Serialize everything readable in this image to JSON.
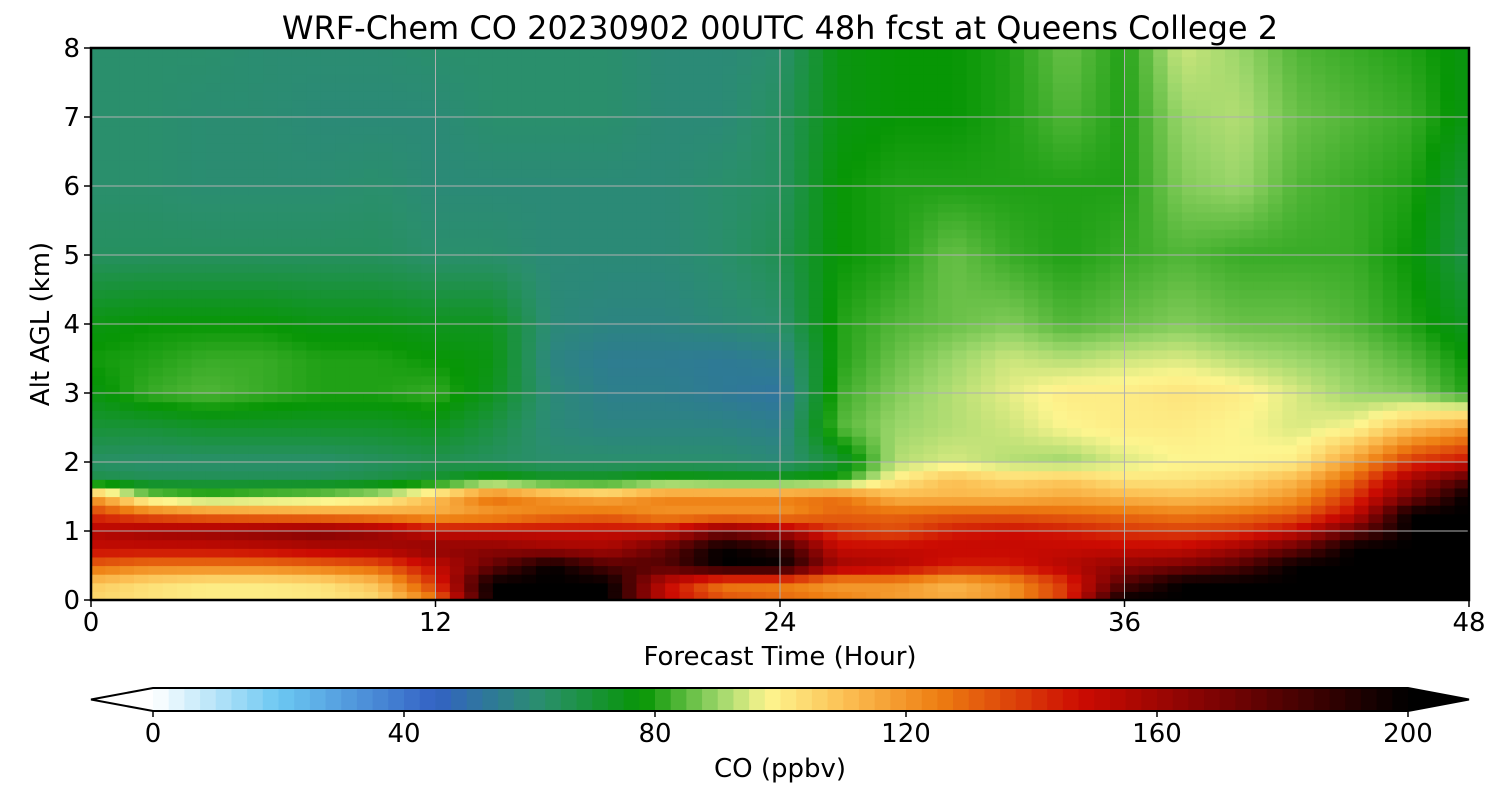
{
  "chart_data": {
    "type": "heatmap",
    "title": "WRF-Chem CO  20230902 00UTC 48h fcst at Queens College 2",
    "xlabel": "Forecast Time (Hour)",
    "ylabel": "Alt AGL (km)",
    "xlim": [
      0,
      48
    ],
    "ylim": [
      0,
      8
    ],
    "xticks": [
      0,
      12,
      24,
      36,
      48
    ],
    "yticks": [
      0,
      1,
      2,
      3,
      4,
      5,
      6,
      7,
      8
    ],
    "grid": true,
    "colorbar": {
      "label": "CO  (ppbv)",
      "orientation": "horizontal",
      "range": [
        0,
        200
      ],
      "ticks": [
        0,
        40,
        80,
        120,
        160,
        200
      ],
      "extend": "both",
      "stops": [
        {
          "v": 0,
          "c": "#ffffff"
        },
        {
          "v": 20,
          "c": "#6cc8f2"
        },
        {
          "v": 45,
          "c": "#3362c4"
        },
        {
          "v": 62,
          "c": "#2a8f6c"
        },
        {
          "v": 78,
          "c": "#079605"
        },
        {
          "v": 90,
          "c": "#9bd66a"
        },
        {
          "v": 98,
          "c": "#fdf58f"
        },
        {
          "v": 110,
          "c": "#fcc054"
        },
        {
          "v": 125,
          "c": "#ee7f12"
        },
        {
          "v": 148,
          "c": "#cc0b02"
        },
        {
          "v": 170,
          "c": "#7a0303"
        },
        {
          "v": 200,
          "c": "#000000"
        }
      ]
    },
    "x": [
      0,
      2,
      4,
      6,
      8,
      10,
      12,
      14,
      16,
      18,
      20,
      22,
      24,
      26,
      28,
      30,
      32,
      34,
      36,
      38,
      40,
      42,
      44,
      46,
      48
    ],
    "y": [
      0,
      0.25,
      0.5,
      0.75,
      1,
      1.25,
      1.5,
      1.75,
      2,
      2.5,
      3,
      3.5,
      4,
      5,
      6,
      7,
      8
    ],
    "values": [
      [
        105,
        102,
        100,
        100,
        101,
        104,
        125,
        200,
        200,
        200,
        150,
        135,
        130,
        125,
        118,
        115,
        120,
        140,
        200,
        200,
        200,
        200,
        200,
        200,
        200
      ],
      [
        108,
        103,
        100,
        100,
        102,
        110,
        140,
        200,
        200,
        200,
        150,
        125,
        125,
        118,
        120,
        112,
        120,
        140,
        180,
        200,
        200,
        200,
        200,
        200,
        200
      ],
      [
        130,
        125,
        125,
        125,
        128,
        132,
        150,
        175,
        200,
        180,
        180,
        200,
        200,
        160,
        155,
        145,
        145,
        155,
        165,
        170,
        180,
        200,
        200,
        200,
        200
      ],
      [
        150,
        150,
        150,
        152,
        155,
        158,
        165,
        165,
        160,
        158,
        175,
        200,
        190,
        150,
        150,
        150,
        150,
        150,
        150,
        150,
        160,
        175,
        200,
        200,
        200
      ],
      [
        155,
        160,
        162,
        165,
        168,
        162,
        150,
        150,
        150,
        150,
        150,
        170,
        160,
        140,
        135,
        145,
        148,
        145,
        140,
        138,
        140,
        150,
        175,
        200,
        200
      ],
      [
        140,
        130,
        125,
        122,
        120,
        118,
        115,
        118,
        125,
        128,
        120,
        120,
        120,
        130,
        130,
        132,
        132,
        130,
        128,
        125,
        128,
        132,
        150,
        200,
        200
      ],
      [
        118,
        90,
        85,
        88,
        90,
        95,
        110,
        130,
        120,
        115,
        125,
        125,
        125,
        128,
        112,
        112,
        112,
        115,
        112,
        110,
        112,
        120,
        140,
        170,
        200
      ],
      [
        68,
        66,
        66,
        66,
        66,
        68,
        72,
        80,
        75,
        75,
        80,
        78,
        78,
        80,
        100,
        110,
        105,
        108,
        102,
        102,
        105,
        112,
        130,
        160,
        180
      ],
      [
        63,
        62,
        62,
        62,
        62,
        64,
        66,
        64,
        62,
        62,
        62,
        62,
        60,
        70,
        92,
        95,
        92,
        90,
        95,
        98,
        98,
        100,
        118,
        140,
        148
      ],
      [
        70,
        70,
        72,
        72,
        72,
        72,
        74,
        68,
        60,
        58,
        58,
        58,
        56,
        84,
        90,
        92,
        94,
        98,
        100,
        100,
        98,
        95,
        98,
        110,
        118
      ],
      [
        76,
        82,
        84,
        82,
        80,
        80,
        82,
        74,
        60,
        56,
        56,
        54,
        52,
        82,
        88,
        92,
        96,
        100,
        100,
        102,
        100,
        95,
        90,
        88,
        80
      ],
      [
        79,
        80,
        82,
        82,
        80,
        80,
        78,
        76,
        58,
        55,
        55,
        54,
        56,
        80,
        86,
        90,
        94,
        92,
        94,
        95,
        92,
        90,
        88,
        84,
        78
      ],
      [
        76,
        78,
        78,
        78,
        76,
        76,
        74,
        74,
        60,
        58,
        58,
        60,
        62,
        80,
        84,
        86,
        88,
        84,
        86,
        88,
        86,
        86,
        84,
        80,
        74
      ],
      [
        64,
        64,
        64,
        64,
        64,
        64,
        62,
        62,
        60,
        60,
        60,
        62,
        66,
        78,
        80,
        86,
        82,
        80,
        82,
        84,
        82,
        82,
        82,
        78,
        68
      ],
      [
        62,
        62,
        61,
        61,
        61,
        62,
        60,
        60,
        60,
        60,
        60,
        62,
        64,
        78,
        80,
        80,
        80,
        80,
        80,
        88,
        90,
        84,
        82,
        80,
        70
      ],
      [
        62,
        62,
        61,
        61,
        60,
        60,
        60,
        62,
        62,
        62,
        60,
        60,
        64,
        76,
        78,
        78,
        80,
        84,
        80,
        90,
        92,
        86,
        84,
        82,
        76
      ],
      [
        62,
        62,
        62,
        61,
        61,
        61,
        62,
        62,
        62,
        62,
        60,
        60,
        62,
        76,
        78,
        78,
        80,
        86,
        80,
        94,
        90,
        84,
        82,
        80,
        76
      ]
    ]
  }
}
